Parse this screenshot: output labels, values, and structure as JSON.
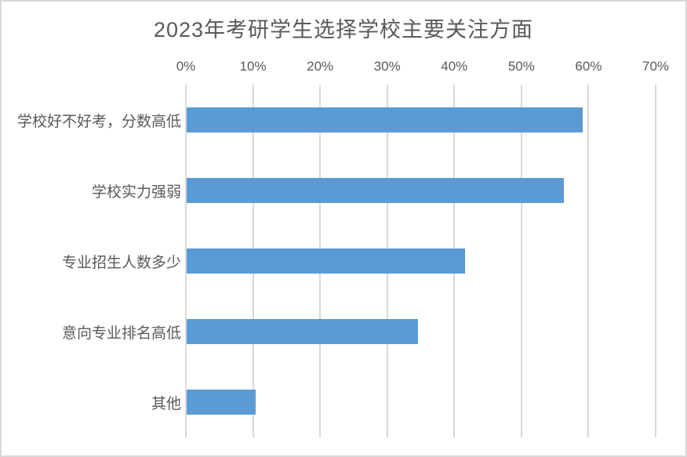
{
  "chart_data": {
    "type": "bar",
    "orientation": "horizontal",
    "title": "2023年考研学生选择学校主要关注方面",
    "categories": [
      "学校好不好考，分数高低",
      "学校实力强弱",
      "专业招生人数多少",
      "意向专业排名高低",
      "其他"
    ],
    "values": [
      59,
      56.2,
      41.5,
      34.5,
      10.3
    ],
    "value_unit": "%",
    "xlabel": "",
    "ylabel": "",
    "xlim": [
      0,
      70
    ],
    "x_ticks": [
      "0%",
      "10%",
      "20%",
      "30%",
      "40%",
      "50%",
      "60%",
      "70%"
    ],
    "x_tick_values": [
      0,
      10,
      20,
      30,
      40,
      50,
      60,
      70
    ],
    "x_axis_position": "top",
    "grid": true,
    "legend": false,
    "colors": {
      "bar": "#5b9bd5",
      "gridline": "#d9d9d9",
      "text": "#595959",
      "frame_border": "#d9d9d9",
      "background": "#ffffff"
    }
  }
}
